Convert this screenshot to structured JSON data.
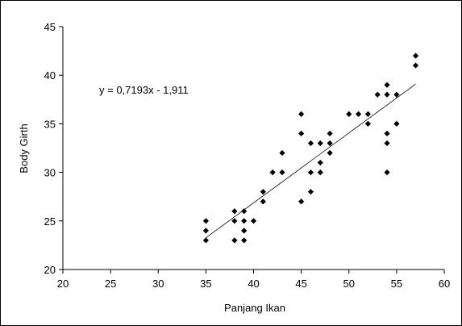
{
  "chart_data": {
    "type": "scatter",
    "title": "",
    "xlabel": "Panjang Ikan",
    "ylabel": "Body Girth",
    "xlim": [
      20,
      60
    ],
    "ylim": [
      20,
      45
    ],
    "xticks": [
      "20",
      "25",
      "30",
      "35",
      "40",
      "45",
      "50",
      "55",
      "60"
    ],
    "yticks": [
      "20",
      "25",
      "30",
      "35",
      "40",
      "45"
    ],
    "grid": false,
    "legend": "none",
    "marker_color": "#000000",
    "trendline": {
      "slope": 0.7193,
      "intercept": -1.911,
      "x_range": [
        35,
        57
      ],
      "equation_label": "y = 0,7193x - 1,911"
    },
    "points": [
      {
        "x": 35,
        "y": 25
      },
      {
        "x": 35,
        "y": 24
      },
      {
        "x": 35,
        "y": 23
      },
      {
        "x": 38,
        "y": 26
      },
      {
        "x": 38,
        "y": 25
      },
      {
        "x": 38,
        "y": 23
      },
      {
        "x": 39,
        "y": 26
      },
      {
        "x": 39,
        "y": 25
      },
      {
        "x": 39,
        "y": 24
      },
      {
        "x": 39,
        "y": 23
      },
      {
        "x": 40,
        "y": 25
      },
      {
        "x": 41,
        "y": 28
      },
      {
        "x": 41,
        "y": 27
      },
      {
        "x": 42,
        "y": 30
      },
      {
        "x": 43,
        "y": 32
      },
      {
        "x": 43,
        "y": 30
      },
      {
        "x": 45,
        "y": 36
      },
      {
        "x": 45,
        "y": 34
      },
      {
        "x": 45,
        "y": 27
      },
      {
        "x": 46,
        "y": 33
      },
      {
        "x": 46,
        "y": 30
      },
      {
        "x": 46,
        "y": 28
      },
      {
        "x": 47,
        "y": 33
      },
      {
        "x": 47,
        "y": 31
      },
      {
        "x": 47,
        "y": 30
      },
      {
        "x": 48,
        "y": 34
      },
      {
        "x": 48,
        "y": 33
      },
      {
        "x": 48,
        "y": 32
      },
      {
        "x": 50,
        "y": 36
      },
      {
        "x": 51,
        "y": 36
      },
      {
        "x": 52,
        "y": 36
      },
      {
        "x": 52,
        "y": 35
      },
      {
        "x": 53,
        "y": 38
      },
      {
        "x": 54,
        "y": 39
      },
      {
        "x": 54,
        "y": 38
      },
      {
        "x": 54,
        "y": 34
      },
      {
        "x": 54,
        "y": 33
      },
      {
        "x": 54,
        "y": 30
      },
      {
        "x": 55,
        "y": 38
      },
      {
        "x": 55,
        "y": 35
      },
      {
        "x": 57,
        "y": 42
      },
      {
        "x": 57,
        "y": 41
      }
    ]
  }
}
